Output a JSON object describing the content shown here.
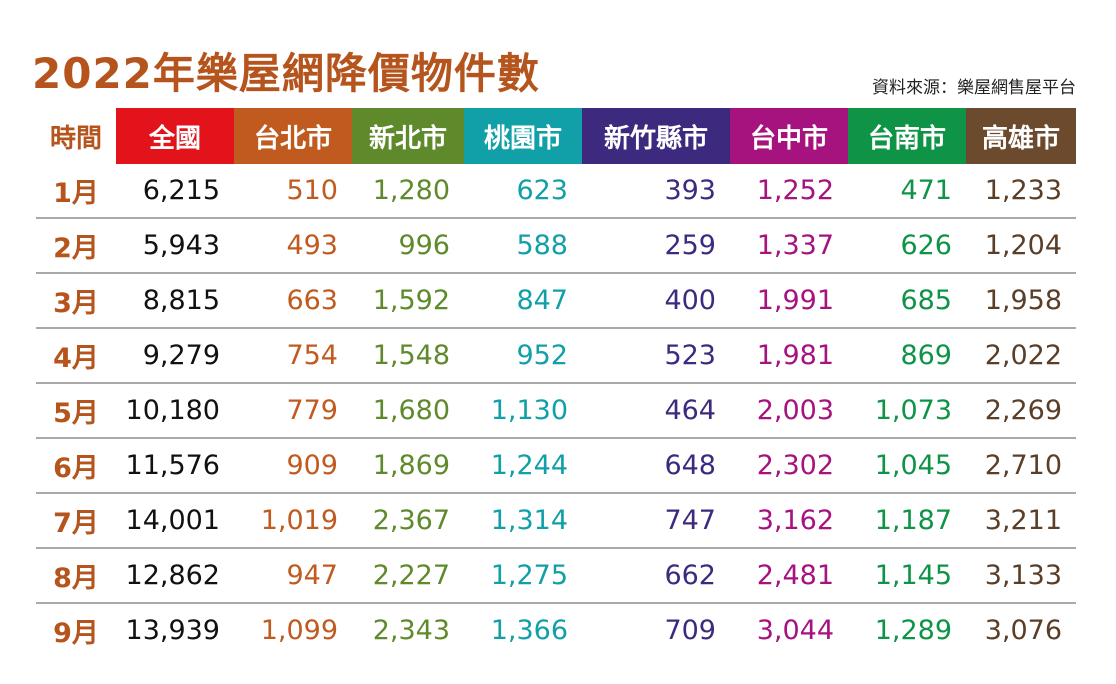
{
  "chart_data": {
    "type": "table",
    "title": "2022年樂屋網降價物件數",
    "source": "資料來源：樂屋網售屋平台",
    "corner_header": "時間",
    "columns": [
      {
        "name": "全國",
        "header_color": "#e3131b",
        "text_color": "#111111"
      },
      {
        "name": "台北市",
        "header_color": "#c05a1f",
        "text_color": "#c05a1f"
      },
      {
        "name": "新北市",
        "header_color": "#5f8a2c",
        "text_color": "#5f8a2c"
      },
      {
        "name": "桃園市",
        "header_color": "#11a0a8",
        "text_color": "#11a0a8"
      },
      {
        "name": "新竹縣市",
        "header_color": "#3d2a7f",
        "text_color": "#3d2a7f"
      },
      {
        "name": "台中市",
        "header_color": "#a6127e",
        "text_color": "#a6127e"
      },
      {
        "name": "台南市",
        "header_color": "#0f9447",
        "text_color": "#0f9447"
      },
      {
        "name": "高雄市",
        "header_color": "#6b4a2e",
        "text_color": "#5a3e28"
      }
    ],
    "rows": [
      {
        "month": "1月",
        "values": [
          "6,215",
          "510",
          "1,280",
          "623",
          "393",
          "1,252",
          "471",
          "1,233"
        ]
      },
      {
        "month": "2月",
        "values": [
          "5,943",
          "493",
          "996",
          "588",
          "259",
          "1,337",
          "626",
          "1,204"
        ]
      },
      {
        "month": "3月",
        "values": [
          "8,815",
          "663",
          "1,592",
          "847",
          "400",
          "1,991",
          "685",
          "1,958"
        ]
      },
      {
        "month": "4月",
        "values": [
          "9,279",
          "754",
          "1,548",
          "952",
          "523",
          "1,981",
          "869",
          "2,022"
        ]
      },
      {
        "month": "5月",
        "values": [
          "10,180",
          "779",
          "1,680",
          "1,130",
          "464",
          "2,003",
          "1,073",
          "2,269"
        ]
      },
      {
        "month": "6月",
        "values": [
          "11,576",
          "909",
          "1,869",
          "1,244",
          "648",
          "2,302",
          "1,045",
          "2,710"
        ]
      },
      {
        "month": "7月",
        "values": [
          "14,001",
          "1,019",
          "2,367",
          "1,314",
          "747",
          "3,162",
          "1,187",
          "3,211"
        ]
      },
      {
        "month": "8月",
        "values": [
          "12,862",
          "947",
          "2,227",
          "1,275",
          "662",
          "2,481",
          "1,145",
          "3,133"
        ]
      },
      {
        "month": "9月",
        "values": [
          "13,939",
          "1,099",
          "2,343",
          "1,366",
          "709",
          "3,044",
          "1,289",
          "3,076"
        ]
      }
    ]
  }
}
